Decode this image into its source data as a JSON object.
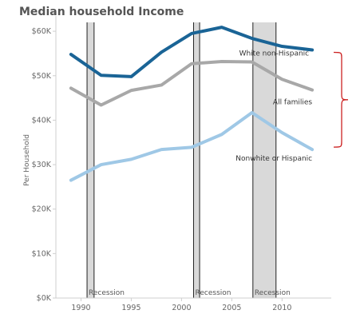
{
  "chart_data": {
    "type": "line",
    "title": "Median household Income",
    "ylabel": "Per Household",
    "xlabel": "",
    "xlim": [
      1987.5,
      2014.5
    ],
    "ylim": [
      0,
      62000
    ],
    "grid": false,
    "x_ticks": [
      1990,
      1995,
      2000,
      2005,
      2010
    ],
    "y_ticks": [
      0,
      10000,
      20000,
      30000,
      40000,
      50000,
      60000
    ],
    "y_tick_labels": [
      "$0K",
      "$10K",
      "$20K",
      "$30K",
      "$40K",
      "$50K",
      "$60K"
    ],
    "recessions": [
      {
        "label": "Recession",
        "start": 1990.6,
        "end": 1991.3
      },
      {
        "label": "Recession",
        "start": 2001.2,
        "end": 2001.8
      },
      {
        "label": "Recession",
        "start": 2007.1,
        "end": 2009.4
      }
    ],
    "series": [
      {
        "name": "White non-Hispanic",
        "color": "#1a6496",
        "x": [
          1989,
          1992,
          1995,
          1998,
          2001,
          2004,
          2007,
          2010,
          2013
        ],
        "values": [
          54800,
          50100,
          49800,
          55300,
          59500,
          60900,
          58400,
          56600,
          55800
        ]
      },
      {
        "name": "All families",
        "color": "#a8a8a8",
        "x": [
          1989,
          1992,
          1995,
          1998,
          2001,
          2004,
          2007,
          2010,
          2013
        ],
        "values": [
          47200,
          43400,
          46700,
          47900,
          52700,
          53200,
          53100,
          49200,
          46800
        ]
      },
      {
        "name": "Nonwhite or Hispanic",
        "color": "#9fc8e6",
        "x": [
          1989,
          1992,
          1995,
          1998,
          2001,
          2004,
          2007,
          2010,
          2013
        ],
        "values": [
          26500,
          30000,
          31200,
          33400,
          33900,
          36800,
          41700,
          37200,
          33400
        ]
      }
    ],
    "bracket_color": "#cc2222"
  }
}
